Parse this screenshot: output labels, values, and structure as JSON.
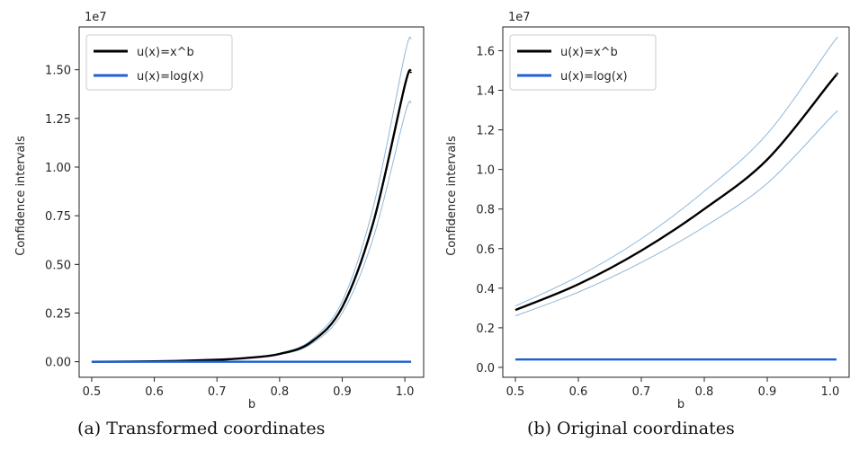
{
  "chart_data": [
    {
      "type": "line",
      "caption": "(a) Transformed coordinates",
      "xlabel": "b",
      "ylabel": "Confidence intervals",
      "offset_label": "1e7",
      "xlim": [
        0.48,
        1.03
      ],
      "ylim": [
        -0.08,
        1.72
      ],
      "xticks": [
        0.5,
        0.6,
        0.7,
        0.8,
        0.9,
        1.0
      ],
      "xtick_labels": [
        "0.5",
        "0.6",
        "0.7",
        "0.8",
        "0.9",
        "1.0"
      ],
      "yticks": [
        0.0,
        0.25,
        0.5,
        0.75,
        1.0,
        1.25,
        1.5
      ],
      "ytick_labels": [
        "0.00",
        "0.25",
        "0.50",
        "0.75",
        "1.00",
        "1.25",
        "1.50"
      ],
      "legend_position": "top-left",
      "series": [
        {
          "name": "u(x)=x^b",
          "color": "#000000",
          "x": [
            0.5,
            0.6,
            0.7,
            0.75,
            0.8,
            0.85,
            0.9,
            0.95,
            1.0,
            1.01
          ],
          "y": [
            0.0,
            0.002,
            0.01,
            0.02,
            0.04,
            0.1,
            0.28,
            0.72,
            1.42,
            1.49
          ],
          "y_lower": [
            0.0,
            0.002,
            0.009,
            0.018,
            0.036,
            0.09,
            0.25,
            0.64,
            1.27,
            1.33
          ],
          "y_upper": [
            0.0,
            0.002,
            0.011,
            0.022,
            0.044,
            0.11,
            0.31,
            0.8,
            1.58,
            1.66
          ]
        },
        {
          "name": "u(x)=log(x)",
          "color": "#1f5fd6",
          "x": [
            0.5,
            1.01
          ],
          "y": [
            0.0,
            0.0
          ]
        }
      ]
    },
    {
      "type": "line",
      "caption": "(b) Original coordinates",
      "xlabel": "b",
      "ylabel": "Confidence intervals",
      "offset_label": "1e7",
      "xlim": [
        0.48,
        1.03
      ],
      "ylim": [
        -0.05,
        1.72
      ],
      "xticks": [
        0.5,
        0.6,
        0.7,
        0.8,
        0.9,
        1.0
      ],
      "xtick_labels": [
        "0.5",
        "0.6",
        "0.7",
        "0.8",
        "0.9",
        "1.0"
      ],
      "yticks": [
        0.0,
        0.2,
        0.4,
        0.6,
        0.8,
        1.0,
        1.2,
        1.4,
        1.6
      ],
      "ytick_labels": [
        "0.0",
        "0.2",
        "0.4",
        "0.6",
        "0.8",
        "1.0",
        "1.2",
        "1.4",
        "1.6"
      ],
      "legend_position": "top-left",
      "series": [
        {
          "name": "u(x)=x^b",
          "color": "#000000",
          "x": [
            0.5,
            0.6,
            0.7,
            0.8,
            0.9,
            1.0,
            1.01
          ],
          "y": [
            0.29,
            0.42,
            0.59,
            0.8,
            1.05,
            1.44,
            1.48
          ],
          "y_lower": [
            0.26,
            0.38,
            0.53,
            0.71,
            0.93,
            1.26,
            1.29
          ],
          "y_upper": [
            0.31,
            0.46,
            0.65,
            0.89,
            1.18,
            1.62,
            1.66
          ]
        },
        {
          "name": "u(x)=log(x)",
          "color": "#1f5fd6",
          "x": [
            0.5,
            1.01
          ],
          "y": [
            0.04,
            0.04
          ]
        }
      ]
    }
  ]
}
